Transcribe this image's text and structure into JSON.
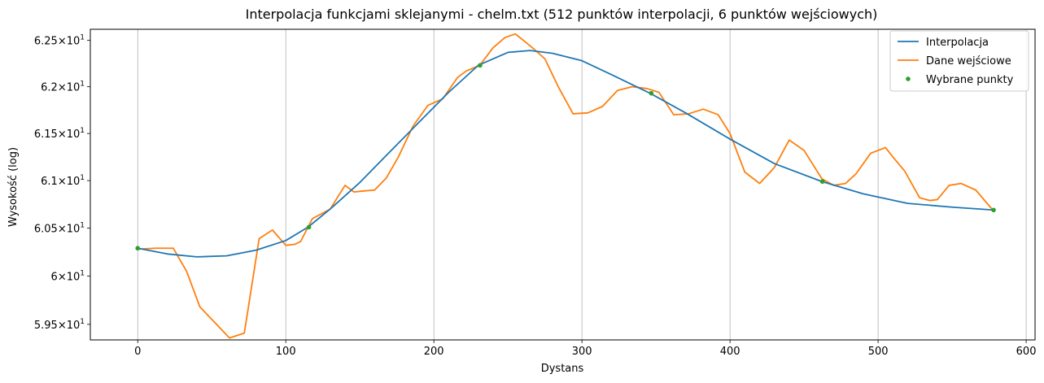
{
  "chart_data": {
    "type": "line",
    "title": "Interpolacja funkcjami sklejanymi - chelm.txt (512 punktów interpolacji, 6 punktów wejściowych)",
    "xlabel": "Dystans",
    "ylabel": "Wysokość (log)",
    "y_scale": "log",
    "xlim": [
      -32,
      606
    ],
    "ylim": [
      59.34,
      62.62
    ],
    "grid": "vertical",
    "legend_position": "top-right",
    "x_ticks": [
      {
        "value": 0,
        "label": "0"
      },
      {
        "value": 100,
        "label": "100"
      },
      {
        "value": 200,
        "label": "200"
      },
      {
        "value": 300,
        "label": "300"
      },
      {
        "value": 400,
        "label": "400"
      },
      {
        "value": 500,
        "label": "500"
      },
      {
        "value": 600,
        "label": "600"
      }
    ],
    "y_ticks": [
      {
        "value": 59.5,
        "mantissa": "5.95",
        "base": "10",
        "exp": "1"
      },
      {
        "value": 60.0,
        "mantissa": "6",
        "base": "10",
        "exp": "1"
      },
      {
        "value": 60.5,
        "mantissa": "6.05",
        "base": "10",
        "exp": "1"
      },
      {
        "value": 61.0,
        "mantissa": "6.1",
        "base": "10",
        "exp": "1"
      },
      {
        "value": 61.5,
        "mantissa": "6.15",
        "base": "10",
        "exp": "1"
      },
      {
        "value": 62.0,
        "mantissa": "6.2",
        "base": "10",
        "exp": "1"
      },
      {
        "value": 62.5,
        "mantissa": "6.25",
        "base": "10",
        "exp": "1"
      }
    ],
    "series": [
      {
        "name": "Interpolacja",
        "kind": "line",
        "color": "#1f77b4",
        "x": [
          0,
          20,
          40,
          60,
          80,
          100,
          115,
          130,
          150,
          170,
          190,
          210,
          230,
          250,
          265,
          280,
          300,
          320,
          346,
          370,
          400,
          430,
          462,
          490,
          520,
          550,
          578
        ],
        "y": [
          60.29,
          60.23,
          60.2,
          60.21,
          60.27,
          60.37,
          60.51,
          60.7,
          60.98,
          61.3,
          61.62,
          61.94,
          62.23,
          62.37,
          62.39,
          62.36,
          62.28,
          62.13,
          61.93,
          61.72,
          61.44,
          61.18,
          60.99,
          60.86,
          60.76,
          60.72,
          60.69
        ]
      },
      {
        "name": "Dane wejściowe",
        "kind": "line",
        "color": "#ff7f0e",
        "x": [
          0,
          12,
          24,
          33,
          42,
          52,
          62,
          72,
          82,
          91,
          100,
          106,
          110,
          115,
          118,
          130,
          140,
          146,
          152,
          160,
          168,
          176,
          186,
          196,
          206,
          216,
          222,
          231,
          240,
          248,
          255,
          262,
          268,
          275,
          284,
          294,
          304,
          314,
          324,
          334,
          344,
          352,
          362,
          372,
          382,
          392,
          400,
          410,
          420,
          430,
          440,
          450,
          462,
          470,
          478,
          485,
          495,
          505,
          510,
          518,
          528,
          535,
          540,
          548,
          556,
          566,
          578
        ],
        "y": [
          60.28,
          60.29,
          60.29,
          60.05,
          59.68,
          59.52,
          59.36,
          59.41,
          60.39,
          60.48,
          60.32,
          60.33,
          60.36,
          60.51,
          60.6,
          60.7,
          60.95,
          60.88,
          60.89,
          60.9,
          61.03,
          61.25,
          61.58,
          61.8,
          61.87,
          62.1,
          62.17,
          62.23,
          62.42,
          62.53,
          62.57,
          62.48,
          62.4,
          62.3,
          62.0,
          61.71,
          61.72,
          61.79,
          61.96,
          62.0,
          61.98,
          61.94,
          61.7,
          61.71,
          61.76,
          61.7,
          61.5,
          61.09,
          60.97,
          61.14,
          61.43,
          61.32,
          61.02,
          60.95,
          60.97,
          61.07,
          61.29,
          61.35,
          61.25,
          61.1,
          60.82,
          60.79,
          60.8,
          60.95,
          60.97,
          60.9,
          60.68
        ]
      },
      {
        "name": "Wybrane punkty",
        "kind": "scatter",
        "color": "#2ca02c",
        "x": [
          0,
          115.6,
          231.2,
          346.8,
          462.4,
          578
        ],
        "y": [
          60.29,
          60.51,
          62.23,
          61.93,
          60.99,
          60.69
        ]
      }
    ]
  }
}
